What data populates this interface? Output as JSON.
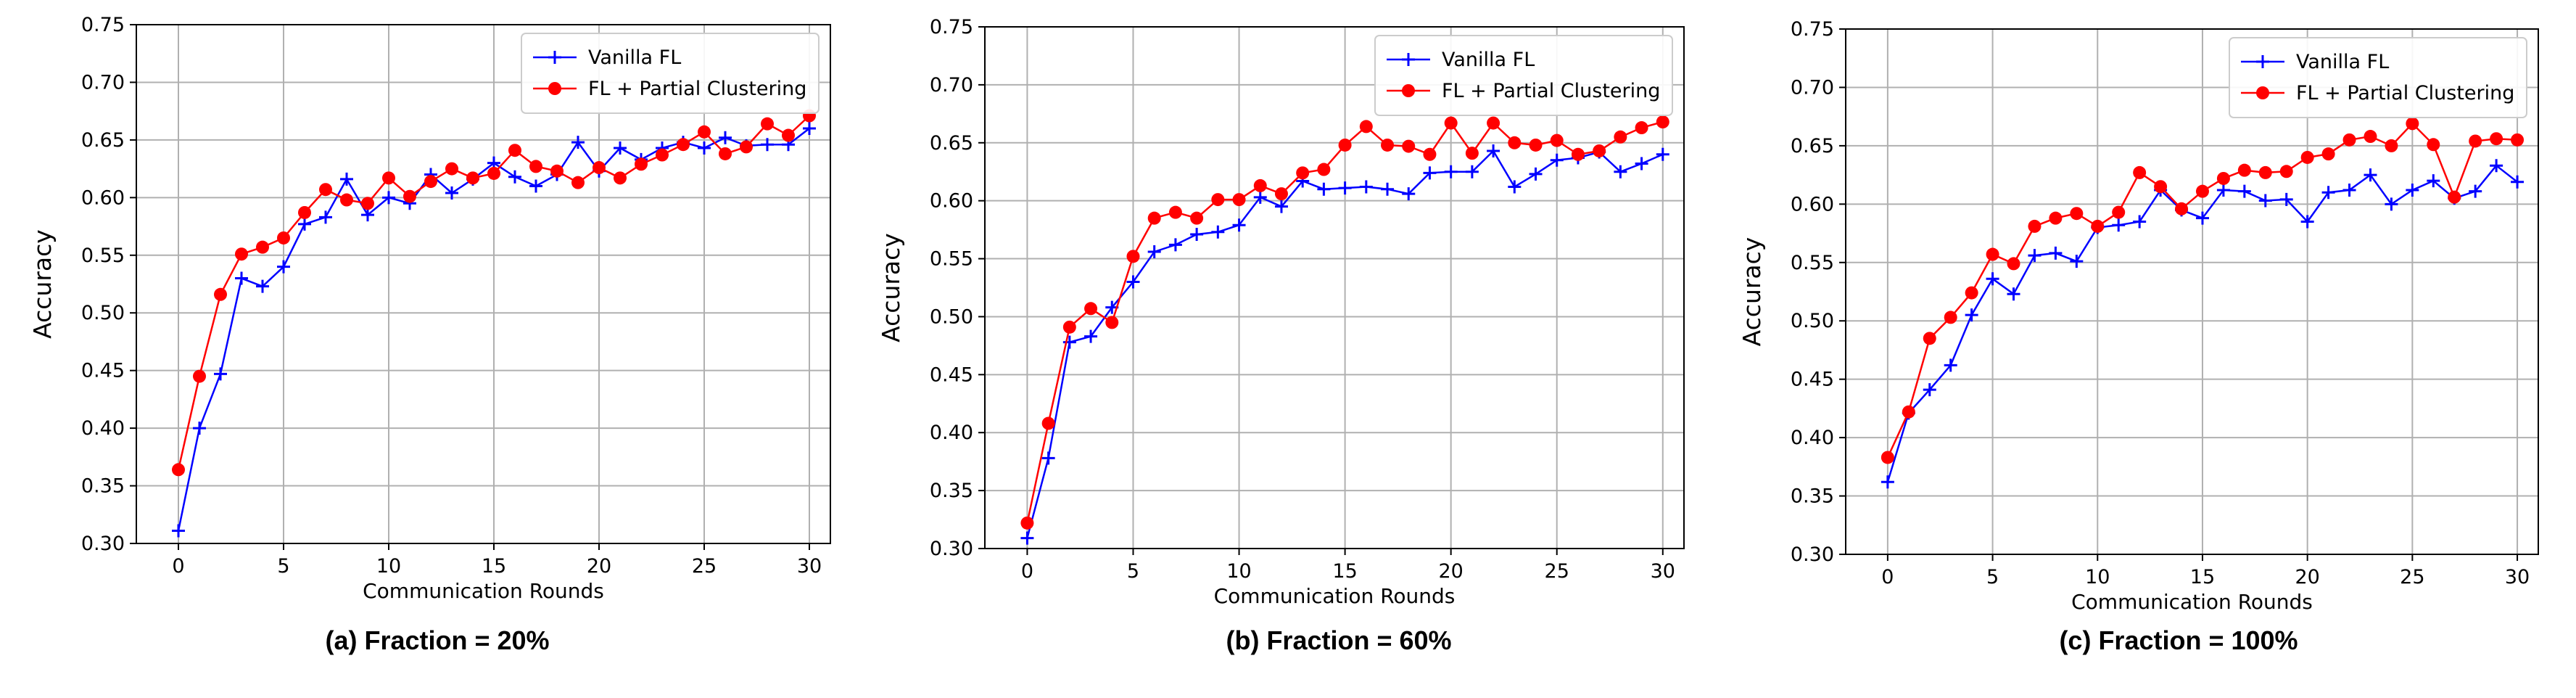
{
  "chart_data": [
    {
      "type": "line",
      "caption": "(a) Fraction = 20%",
      "xlabel": "Communication Rounds",
      "ylabel": "Accuracy",
      "xlim": [
        -2,
        31
      ],
      "ylim": [
        0.3,
        0.75
      ],
      "xticks": [
        "0",
        "5",
        "10",
        "15",
        "20",
        "25",
        "30"
      ],
      "yticks": [
        "0.30",
        "0.35",
        "0.40",
        "0.45",
        "0.50",
        "0.55",
        "0.60",
        "0.65",
        "0.70",
        "0.75"
      ],
      "grid": true,
      "legend_position": "top-right",
      "x": [
        0,
        1,
        2,
        3,
        4,
        5,
        6,
        7,
        8,
        9,
        10,
        11,
        12,
        13,
        14,
        15,
        16,
        17,
        18,
        19,
        20,
        21,
        22,
        23,
        24,
        25,
        26,
        27,
        28,
        29,
        30
      ],
      "series": [
        {
          "name": "Vanilla FL",
          "color": "#0000ff",
          "marker": "plus",
          "values": [
            0.311,
            0.4,
            0.447,
            0.53,
            0.523,
            0.54,
            0.577,
            0.583,
            0.616,
            0.585,
            0.6,
            0.595,
            0.62,
            0.604,
            0.616,
            0.63,
            0.618,
            0.61,
            0.62,
            0.648,
            0.623,
            0.643,
            0.633,
            0.643,
            0.648,
            0.643,
            0.652,
            0.645,
            0.646,
            0.646,
            0.66
          ]
        },
        {
          "name": "FL + Partial Clustering",
          "color": "#ff0000",
          "marker": "circle",
          "values": [
            0.364,
            0.445,
            0.516,
            0.551,
            0.557,
            0.565,
            0.587,
            0.607,
            0.598,
            0.595,
            0.617,
            0.601,
            0.614,
            0.625,
            0.617,
            0.621,
            0.641,
            0.627,
            0.623,
            0.613,
            0.626,
            0.617,
            0.629,
            0.637,
            0.646,
            0.657,
            0.638,
            0.644,
            0.664,
            0.654,
            0.671
          ]
        }
      ]
    },
    {
      "type": "line",
      "caption": "(b) Fraction = 60%",
      "xlabel": "Communication Rounds",
      "ylabel": "Accuracy",
      "xlim": [
        -2,
        31
      ],
      "ylim": [
        0.3,
        0.75
      ],
      "xticks": [
        "0",
        "5",
        "10",
        "15",
        "20",
        "25",
        "30"
      ],
      "yticks": [
        "0.30",
        "0.35",
        "0.40",
        "0.45",
        "0.50",
        "0.55",
        "0.60",
        "0.65",
        "0.70",
        "0.75"
      ],
      "grid": true,
      "legend_position": "top-right",
      "x": [
        0,
        1,
        2,
        3,
        4,
        5,
        6,
        7,
        8,
        9,
        10,
        11,
        12,
        13,
        14,
        15,
        16,
        17,
        18,
        19,
        20,
        21,
        22,
        23,
        24,
        25,
        26,
        27,
        28,
        29,
        30
      ],
      "series": [
        {
          "name": "Vanilla FL",
          "color": "#0000ff",
          "marker": "plus",
          "values": [
            0.309,
            0.378,
            0.478,
            0.483,
            0.508,
            0.53,
            0.556,
            0.562,
            0.571,
            0.573,
            0.579,
            0.603,
            0.595,
            0.617,
            0.61,
            0.611,
            0.612,
            0.61,
            0.606,
            0.624,
            0.625,
            0.625,
            0.643,
            0.612,
            0.623,
            0.635,
            0.637,
            0.642,
            0.625,
            0.632,
            0.64
          ]
        },
        {
          "name": "FL + Partial Clustering",
          "color": "#ff0000",
          "marker": "circle",
          "values": [
            0.322,
            0.408,
            0.491,
            0.507,
            0.495,
            0.552,
            0.585,
            0.59,
            0.585,
            0.601,
            0.601,
            0.613,
            0.606,
            0.624,
            0.627,
            0.648,
            0.664,
            0.648,
            0.647,
            0.64,
            0.667,
            0.641,
            0.667,
            0.65,
            0.648,
            0.652,
            0.64,
            0.643,
            0.655,
            0.663,
            0.668
          ]
        }
      ]
    },
    {
      "type": "line",
      "caption": "(c) Fraction = 100%",
      "xlabel": "Communication Rounds",
      "ylabel": "Accuracy",
      "xlim": [
        -2,
        31
      ],
      "ylim": [
        0.3,
        0.75
      ],
      "xticks": [
        "0",
        "5",
        "10",
        "15",
        "20",
        "25",
        "30"
      ],
      "yticks": [
        "0.30",
        "0.35",
        "0.40",
        "0.45",
        "0.50",
        "0.55",
        "0.60",
        "0.65",
        "0.70",
        "0.75"
      ],
      "grid": true,
      "legend_position": "top-right",
      "x": [
        0,
        1,
        2,
        3,
        4,
        5,
        6,
        7,
        8,
        9,
        10,
        11,
        12,
        13,
        14,
        15,
        16,
        17,
        18,
        19,
        20,
        21,
        22,
        23,
        24,
        25,
        26,
        27,
        28,
        29,
        30
      ],
      "series": [
        {
          "name": "Vanilla FL",
          "color": "#0000ff",
          "marker": "plus",
          "values": [
            0.362,
            0.421,
            0.441,
            0.462,
            0.505,
            0.536,
            0.523,
            0.556,
            0.558,
            0.551,
            0.58,
            0.582,
            0.585,
            0.612,
            0.595,
            0.588,
            0.612,
            0.611,
            0.603,
            0.604,
            0.585,
            0.61,
            0.612,
            0.625,
            0.6,
            0.612,
            0.62,
            0.605,
            0.611,
            0.633,
            0.619
          ]
        },
        {
          "name": "FL + Partial Clustering",
          "color": "#ff0000",
          "marker": "circle",
          "values": [
            0.383,
            0.422,
            0.485,
            0.503,
            0.524,
            0.557,
            0.549,
            0.581,
            0.588,
            0.592,
            0.581,
            0.593,
            0.627,
            0.615,
            0.596,
            0.611,
            0.622,
            0.629,
            0.627,
            0.628,
            0.64,
            0.643,
            0.655,
            0.658,
            0.65,
            0.669,
            0.651,
            0.606,
            0.654,
            0.656,
            0.655
          ]
        }
      ]
    }
  ]
}
